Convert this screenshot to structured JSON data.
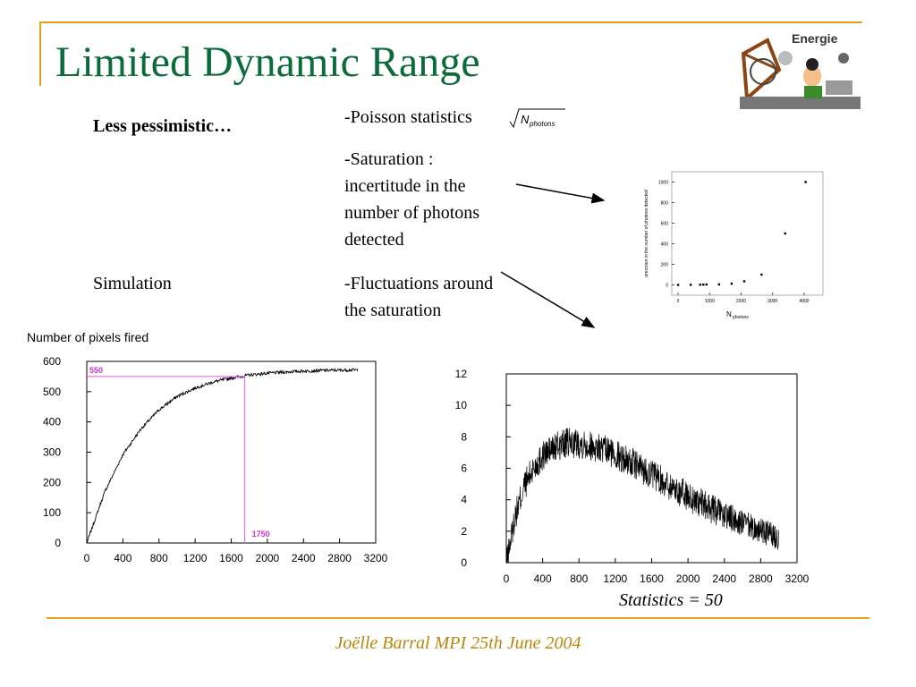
{
  "slide": {
    "title": "Limited Dynamic Range",
    "subtitle_left": "Less pessimistic…",
    "simulation_label": "Simulation",
    "bullets": {
      "b1": "-Poisson statistics",
      "b1_formula_symbol": "N",
      "b1_formula_sub": "photons",
      "b2_line1": "-Saturation :",
      "b2_line2": "incertitude in the",
      "b2_line3": "number of photons",
      "b2_line4": "detected",
      "b3_line1": "-Fluctuations around",
      "b3_line2": "the saturation"
    },
    "statistics_label": "Statistics = 50",
    "footer": "Joëlle Barral MPI 25th June 2004",
    "logo_text": "Energie"
  },
  "colors": {
    "title": "#0b6b3a",
    "accent": "#e3a21a",
    "footer": "#b8860b",
    "marker": "#e05ae0",
    "marker_text": "#cc33cc"
  },
  "chart_data": [
    {
      "type": "line",
      "title": "Number of pixels fired",
      "xlabel": "",
      "ylabel": "",
      "xlim": [
        0,
        3200
      ],
      "ylim": [
        0,
        600
      ],
      "x_ticks": [
        "0",
        "400",
        "800",
        "1200",
        "1600",
        "2000",
        "2400",
        "2800",
        "3200"
      ],
      "y_ticks": [
        "0",
        "100",
        "200",
        "300",
        "400",
        "500",
        "600"
      ],
      "series": [
        {
          "x": [
            0,
            200,
            400,
            600,
            800,
            1000,
            1200,
            1400,
            1600,
            1800,
            2000,
            2200,
            2400,
            2600,
            2800,
            3000
          ],
          "values": [
            0,
            170,
            292,
            377,
            440,
            484,
            512,
            532,
            545,
            555,
            561,
            565,
            568,
            570,
            571,
            572
          ]
        }
      ],
      "annotations": [
        {
          "label": "550",
          "value": 550,
          "axis": "y"
        },
        {
          "label": "1750",
          "value": 1750,
          "axis": "x"
        }
      ],
      "grid": false
    },
    {
      "type": "line",
      "title": "",
      "xlabel": "",
      "ylabel": "",
      "xlim": [
        0,
        3200
      ],
      "ylim": [
        0,
        12
      ],
      "x_ticks": [
        "0",
        "400",
        "800",
        "1200",
        "1600",
        "2000",
        "2400",
        "2800",
        "3200"
      ],
      "y_ticks": [
        "0",
        "2",
        "4",
        "6",
        "8",
        "10",
        "12"
      ],
      "series": [
        {
          "x": [
            0,
            100,
            200,
            300,
            400,
            500,
            600,
            700,
            800,
            900,
            1000,
            1200,
            1400,
            1600,
            1800,
            2000,
            2200,
            2400,
            2600,
            2800,
            3000
          ],
          "values": [
            0,
            3.0,
            4.9,
            6.0,
            6.8,
            7.2,
            7.5,
            7.6,
            7.6,
            7.5,
            7.3,
            6.9,
            6.3,
            5.6,
            4.9,
            4.2,
            3.6,
            3.0,
            2.5,
            2.0,
            1.6
          ]
        }
      ],
      "grid": false
    },
    {
      "type": "scatter",
      "title": "",
      "xlabel": "N",
      "xlabel_sub": "photons",
      "ylabel": "precision in the number of photons detected",
      "xlim": [
        -200,
        4600
      ],
      "ylim": [
        -100,
        1100
      ],
      "x_ticks": [
        "0",
        "1000",
        "2000",
        "3000",
        "4000"
      ],
      "y_ticks": [
        "0",
        "200",
        "400",
        "600",
        "800",
        "1000"
      ],
      "x": [
        0,
        400,
        700,
        800,
        900,
        1300,
        1700,
        2100,
        2650,
        3400,
        4050
      ],
      "values": [
        0,
        1,
        2,
        3,
        4,
        5,
        12,
        35,
        100,
        500,
        1000
      ],
      "grid": false
    }
  ]
}
